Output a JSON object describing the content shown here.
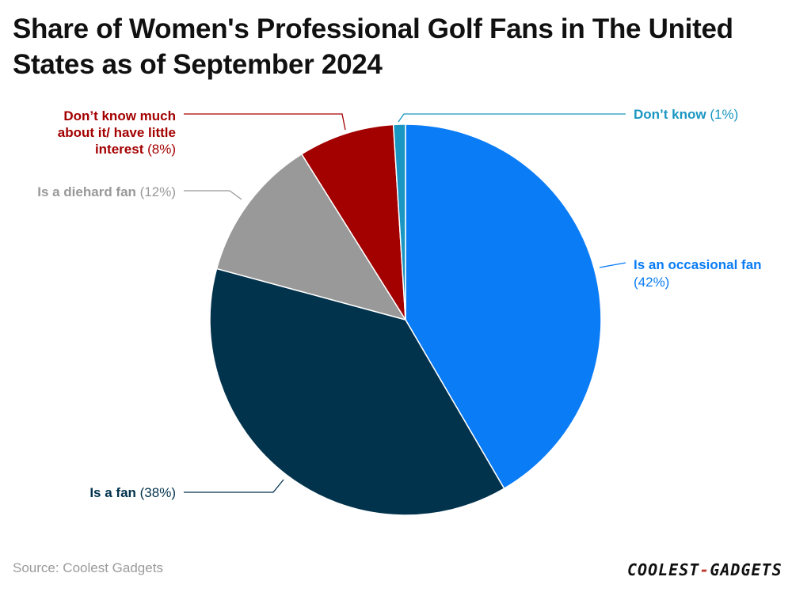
{
  "chart_data": {
    "type": "pie",
    "title": "Share of Women's Professional Golf Fans in The United States as of September 2024",
    "slices": [
      {
        "label": "Is an occasional fan",
        "value": 42,
        "value_label": "(42%)",
        "color": "#0a7cf5"
      },
      {
        "label": "Is a fan",
        "value": 38,
        "value_label": "(38%)",
        "color": "#02334d"
      },
      {
        "label": "Is a diehard fan",
        "value": 12,
        "value_label": "(12%)",
        "color": "#999999"
      },
      {
        "label": "Don’t know much about it/ have little interest",
        "value": 8,
        "value_label": "(8%)",
        "color": "#a30000"
      },
      {
        "label": "Don’t know",
        "value": 1,
        "value_label": "(1%)",
        "color": "#1a96c2"
      }
    ]
  },
  "source": "Source: Coolest Gadgets",
  "logo": {
    "part1": "COOLEST",
    "dash": "-",
    "part2": "GADGETS"
  }
}
